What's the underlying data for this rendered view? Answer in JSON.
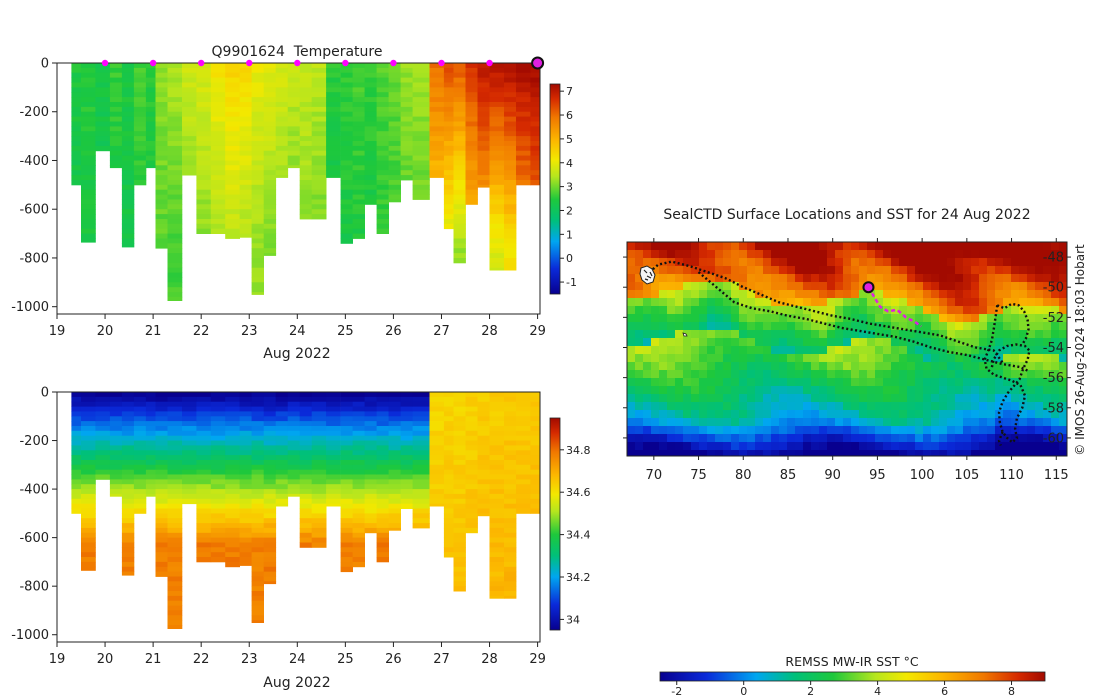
{
  "chart_data": [
    {
      "id": "temperature-section",
      "type": "heatmap",
      "title": "Q9901624  Temperature",
      "xlabel": "Aug 2022",
      "x_ticks": [
        "19",
        "20",
        "21",
        "22",
        "23",
        "24",
        "25",
        "26",
        "27",
        "28",
        "29"
      ],
      "xlim": [
        19,
        29.05
      ],
      "ylim": [
        -1030,
        0
      ],
      "y_ticks": [
        0,
        -200,
        -400,
        -600,
        -800,
        -1000
      ],
      "y_tick_labels": [
        "0",
        "-200",
        "-400",
        "-600",
        "-800",
        "-1000"
      ],
      "colorbar": {
        "min": -1.5,
        "max": 7.3,
        "ticks": [
          7,
          6,
          5,
          4,
          3,
          2,
          1,
          0,
          -1
        ],
        "tick_labels": [
          "7",
          "6",
          "5",
          "4",
          "3",
          "2",
          "1",
          "0",
          "-1"
        ]
      },
      "surface_markers_x": [
        20,
        21,
        22,
        23,
        24,
        25,
        26,
        27,
        28
      ],
      "current_marker_x": 29,
      "profiles": [
        {
          "x": 19.3,
          "depth": 500,
          "surf": 2.4,
          "deep": 2.2
        },
        {
          "x": 19.5,
          "depth": 735,
          "surf": 2.5,
          "deep": 2.3
        },
        {
          "x": 19.8,
          "depth": 360,
          "surf": 2.3,
          "deep": 2.1
        },
        {
          "x": 20.1,
          "depth": 430,
          "surf": 2.6,
          "deep": 2.3
        },
        {
          "x": 20.35,
          "depth": 755,
          "surf": 2.4,
          "deep": 2.2
        },
        {
          "x": 20.6,
          "depth": 500,
          "surf": 2.7,
          "deep": 2.4
        },
        {
          "x": 20.85,
          "depth": 430,
          "surf": 2.5,
          "deep": 2.3
        },
        {
          "x": 21.05,
          "depth": 760,
          "surf": 3.2,
          "deep": 2.8
        },
        {
          "x": 21.3,
          "depth": 975,
          "surf": 3.4,
          "deep": 2.7
        },
        {
          "x": 21.6,
          "depth": 460,
          "surf": 3.7,
          "deep": 3.0
        },
        {
          "x": 21.9,
          "depth": 700,
          "surf": 3.8,
          "deep": 3.1
        },
        {
          "x": 22.2,
          "depth": 700,
          "surf": 4.2,
          "deep": 3.3
        },
        {
          "x": 22.5,
          "depth": 720,
          "surf": 4.5,
          "deep": 3.4
        },
        {
          "x": 22.8,
          "depth": 715,
          "surf": 4.4,
          "deep": 3.3
        },
        {
          "x": 23.05,
          "depth": 950,
          "surf": 4.0,
          "deep": 3.2
        },
        {
          "x": 23.3,
          "depth": 790,
          "surf": 3.9,
          "deep": 3.1
        },
        {
          "x": 23.55,
          "depth": 470,
          "surf": 3.8,
          "deep": 3.0
        },
        {
          "x": 23.8,
          "depth": 430,
          "surf": 3.6,
          "deep": 2.9
        },
        {
          "x": 24.05,
          "depth": 640,
          "surf": 3.6,
          "deep": 3.1
        },
        {
          "x": 24.3,
          "depth": 640,
          "surf": 3.5,
          "deep": 3.0
        },
        {
          "x": 24.6,
          "depth": 470,
          "surf": 2.5,
          "deep": 2.2
        },
        {
          "x": 24.9,
          "depth": 740,
          "surf": 2.6,
          "deep": 2.3
        },
        {
          "x": 25.15,
          "depth": 720,
          "surf": 2.7,
          "deep": 2.4
        },
        {
          "x": 25.4,
          "depth": 580,
          "surf": 2.6,
          "deep": 2.3
        },
        {
          "x": 25.65,
          "depth": 700,
          "surf": 2.8,
          "deep": 2.5
        },
        {
          "x": 25.9,
          "depth": 570,
          "surf": 2.9,
          "deep": 2.6
        },
        {
          "x": 26.15,
          "depth": 480,
          "surf": 3.2,
          "deep": 2.7
        },
        {
          "x": 26.4,
          "depth": 560,
          "surf": 3.3,
          "deep": 2.8
        },
        {
          "x": 26.75,
          "depth": 470,
          "surf": 6.0,
          "deep": 4.2
        },
        {
          "x": 27.05,
          "depth": 680,
          "surf": 6.3,
          "deep": 3.6
        },
        {
          "x": 27.25,
          "depth": 820,
          "surf": 6.2,
          "deep": 3.2
        },
        {
          "x": 27.5,
          "depth": 580,
          "surf": 6.6,
          "deep": 4.6
        },
        {
          "x": 27.75,
          "depth": 510,
          "surf": 7.0,
          "deep": 4.8
        },
        {
          "x": 28.0,
          "depth": 850,
          "surf": 7.1,
          "deep": 3.8
        },
        {
          "x": 28.3,
          "depth": 850,
          "surf": 7.2,
          "deep": 4.2
        },
        {
          "x": 28.55,
          "depth": 500,
          "surf": 7.2,
          "deep": 5.2
        },
        {
          "x": 28.85,
          "depth": 500,
          "surf": 7.3,
          "deep": 5.6
        }
      ]
    },
    {
      "id": "salinity-section",
      "type": "heatmap",
      "xlabel": "Aug 2022",
      "x_ticks": [
        "19",
        "20",
        "21",
        "22",
        "23",
        "24",
        "25",
        "26",
        "27",
        "28",
        "29"
      ],
      "xlim": [
        19,
        29.05
      ],
      "ylim": [
        -1030,
        0
      ],
      "y_ticks": [
        0,
        -200,
        -400,
        -600,
        -800,
        -1000
      ],
      "y_tick_labels": [
        "0",
        "-200",
        "-400",
        "-600",
        "-800",
        "-1000"
      ],
      "colorbar": {
        "min": 33.95,
        "max": 34.95,
        "ticks": [
          34.8,
          34.6,
          34.4,
          34.2,
          34
        ],
        "tick_labels": [
          "34.8",
          "34.6",
          "34.4",
          "34.2",
          "34"
        ]
      },
      "surface_salinity": 33.95,
      "deep_salinity": 34.78,
      "profiles_use_same_depths": true
    },
    {
      "id": "sst-map",
      "type": "heatmap",
      "title": "SealCTD Surface Locations and SST for 24 Aug 2022",
      "x_ticks": [
        70,
        75,
        80,
        85,
        90,
        95,
        100,
        105,
        110,
        115
      ],
      "y_ticks": [
        -48,
        -50,
        -52,
        -54,
        -56,
        -58,
        -60
      ],
      "xlim": [
        67,
        116.2
      ],
      "ylim": [
        -61.2,
        -47
      ],
      "credit": "© IMOS 26-Aug-2024 18:03 Hobart",
      "colorbar": {
        "label": "REMSS MW-IR SST °C",
        "min": -2.5,
        "max": 9,
        "ticks": [
          -2,
          0,
          2,
          4,
          6,
          8
        ],
        "tick_labels": [
          "-2",
          "0",
          "2",
          "4",
          "6",
          "8"
        ]
      },
      "recent_track": [
        [
          94,
          -50
        ],
        [
          94.6,
          -50.6
        ],
        [
          95.3,
          -51.3
        ],
        [
          96.2,
          -51.6
        ],
        [
          97.2,
          -51.5
        ],
        [
          98.2,
          -52
        ],
        [
          99.2,
          -52.3
        ],
        [
          99.9,
          -52.6
        ]
      ],
      "current_position": [
        94,
        -50
      ],
      "historic_tracks": [
        [
          [
            69.5,
            -49
          ],
          [
            70.5,
            -48.5
          ],
          [
            72,
            -48.3
          ],
          [
            74,
            -48.6
          ],
          [
            76,
            -49
          ],
          [
            78,
            -49.4
          ],
          [
            80,
            -50
          ],
          [
            82,
            -50.5
          ],
          [
            84,
            -51
          ],
          [
            86,
            -51.3
          ],
          [
            88,
            -51.6
          ],
          [
            90,
            -51.9
          ],
          [
            92,
            -52.1
          ],
          [
            94,
            -52.4
          ],
          [
            96,
            -52.6
          ],
          [
            98,
            -52.8
          ],
          [
            100,
            -53
          ],
          [
            102,
            -53.2
          ],
          [
            104,
            -53.6
          ],
          [
            106,
            -54
          ],
          [
            108,
            -54.2
          ],
          [
            109,
            -55
          ]
        ],
        [
          [
            75,
            -49
          ],
          [
            77,
            -50
          ],
          [
            79,
            -51
          ],
          [
            81,
            -51.4
          ],
          [
            83,
            -51.6
          ],
          [
            85,
            -51.9
          ],
          [
            87,
            -52.1
          ],
          [
            89,
            -52.4
          ],
          [
            91,
            -52.7
          ],
          [
            93,
            -52.9
          ],
          [
            95,
            -53.1
          ],
          [
            97,
            -53.3
          ],
          [
            99,
            -53.6
          ],
          [
            101,
            -54
          ],
          [
            103,
            -54.3
          ],
          [
            105,
            -54.5
          ],
          [
            107,
            -54.8
          ],
          [
            109,
            -55.1
          ],
          [
            111,
            -55.3
          ],
          [
            112,
            -55.6
          ]
        ],
        [
          [
            108.4,
            -51.2
          ],
          [
            109.2,
            -51.4
          ],
          [
            110,
            -51.1
          ],
          [
            110.8,
            -51.2
          ],
          [
            111.4,
            -51.6
          ],
          [
            111.8,
            -52.2
          ],
          [
            111.9,
            -52.8
          ],
          [
            111.6,
            -53.4
          ],
          [
            111.2,
            -53.8
          ]
        ],
        [
          [
            108.4,
            -51.2
          ],
          [
            108.2,
            -52
          ],
          [
            108,
            -52.8
          ],
          [
            107.8,
            -53.5
          ],
          [
            107.4,
            -54.2
          ],
          [
            107,
            -54.8
          ],
          [
            107.2,
            -55.4
          ],
          [
            108,
            -55.8
          ],
          [
            109,
            -56
          ],
          [
            110,
            -56.2
          ],
          [
            111,
            -56.5
          ],
          [
            111.5,
            -57.2
          ],
          [
            111.2,
            -58
          ],
          [
            110.6,
            -58.7
          ],
          [
            110.4,
            -59.4
          ],
          [
            110.6,
            -60
          ],
          [
            110.1,
            -60.3
          ],
          [
            109.5,
            -60
          ],
          [
            109,
            -59.6
          ],
          [
            108.7,
            -59
          ]
        ],
        [
          [
            108.7,
            -59
          ],
          [
            108.6,
            -58.3
          ],
          [
            109,
            -57.6
          ],
          [
            109.6,
            -57
          ],
          [
            110.2,
            -56.6
          ],
          [
            110.9,
            -56.1
          ],
          [
            111.3,
            -55.4
          ],
          [
            111.8,
            -54.8
          ],
          [
            112,
            -54.2
          ],
          [
            111.5,
            -53.9
          ],
          [
            110.5,
            -53.8
          ],
          [
            109.5,
            -53.9
          ],
          [
            108.6,
            -54.2
          ],
          [
            108,
            -54.8
          ],
          [
            107.8,
            -55.3
          ]
        ],
        [
          [
            109,
            -59.6
          ],
          [
            108.6,
            -60.2
          ],
          [
            108.8,
            -60.5
          ]
        ]
      ]
    }
  ]
}
